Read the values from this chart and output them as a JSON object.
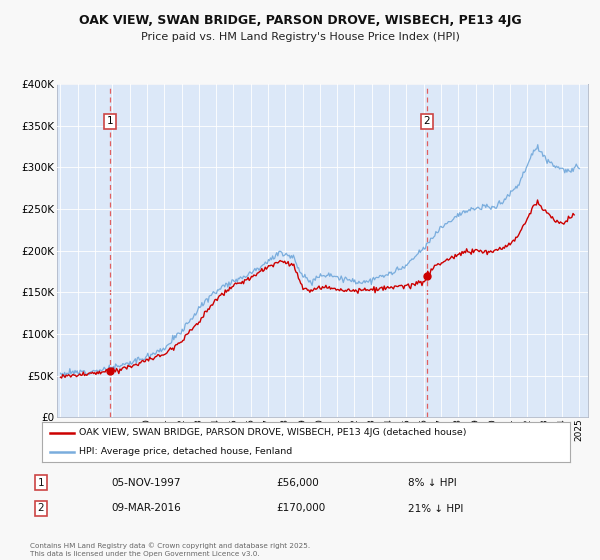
{
  "title": "OAK VIEW, SWAN BRIDGE, PARSON DROVE, WISBECH, PE13 4JG",
  "subtitle": "Price paid vs. HM Land Registry's House Price Index (HPI)",
  "legend_label_red": "OAK VIEW, SWAN BRIDGE, PARSON DROVE, WISBECH, PE13 4JG (detached house)",
  "legend_label_blue": "HPI: Average price, detached house, Fenland",
  "annotation1_date": "05-NOV-1997",
  "annotation1_price": "£56,000",
  "annotation1_hpi": "8% ↓ HPI",
  "annotation2_date": "09-MAR-2016",
  "annotation2_price": "£170,000",
  "annotation2_hpi": "21% ↓ HPI",
  "footer": "Contains HM Land Registry data © Crown copyright and database right 2025.\nThis data is licensed under the Open Government Licence v3.0.",
  "fig_bg": "#f8f8f8",
  "plot_bg": "#dce8f8",
  "vline1_x": 1997.85,
  "vline2_x": 2016.19,
  "point1_x": 1997.85,
  "point1_y": 56000,
  "point2_x": 2016.19,
  "point2_y": 170000,
  "ylim": [
    0,
    400000
  ],
  "xlim": [
    1994.8,
    2025.5
  ],
  "red_color": "#cc0000",
  "blue_color": "#7aaddd",
  "vline_color": "#e06060",
  "grid_color": "#c8d8e8",
  "ann_box_color": "#cc4444"
}
